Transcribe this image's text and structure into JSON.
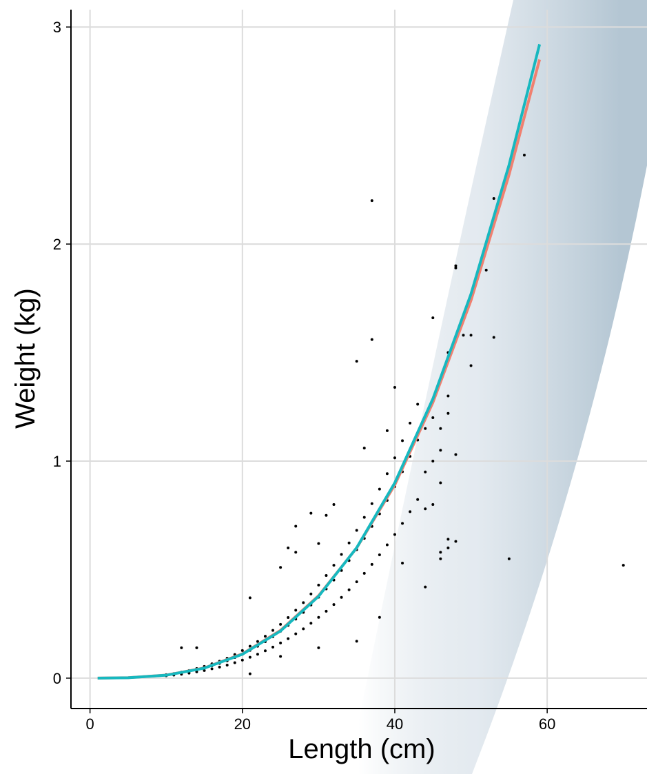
{
  "chart_data": {
    "type": "scatter",
    "xlabel": "Length (cm)",
    "ylabel": "Weight (kg)",
    "xlim": [
      -2.5,
      73.1
    ],
    "ylim": [
      -0.14,
      3.08
    ],
    "xticks": [
      0,
      20,
      40,
      60
    ],
    "yticks": [
      0,
      1,
      2,
      3
    ],
    "grid": true,
    "series": [
      {
        "type": "scatter",
        "color": "#000000",
        "x": [
          37,
          37,
          35,
          40,
          57,
          53,
          48,
          48,
          52,
          45,
          53,
          49,
          50,
          50,
          55,
          70,
          48,
          47,
          46,
          44,
          21,
          29,
          32,
          31,
          27,
          30,
          21,
          12,
          14,
          36,
          39,
          46,
          47,
          48,
          35,
          38,
          30,
          25,
          26,
          27,
          25,
          41,
          10,
          10,
          10,
          11,
          11,
          11,
          12,
          12,
          12,
          13,
          13,
          13,
          14,
          14,
          14,
          15,
          15,
          15,
          16,
          16,
          16,
          17,
          17,
          17,
          18,
          18,
          18,
          19,
          19,
          19,
          20,
          20,
          20,
          21,
          21,
          21,
          22,
          22,
          22,
          23,
          23,
          23,
          24,
          24,
          24,
          25,
          25,
          25,
          26,
          26,
          26,
          27,
          27,
          27,
          28,
          28,
          28,
          29,
          29,
          29,
          30,
          30,
          30,
          31,
          31,
          31,
          32,
          32,
          32,
          33,
          33,
          33,
          34,
          34,
          34,
          35,
          35,
          35,
          36,
          36,
          36,
          37,
          37,
          37,
          38,
          38,
          38,
          39,
          39,
          39,
          40,
          40,
          40,
          41,
          41,
          41,
          42,
          42,
          42,
          43,
          43,
          43,
          44,
          44,
          44,
          45,
          45,
          45,
          46,
          46,
          46,
          47,
          47,
          47
        ],
        "values": [
          2.2,
          1.56,
          1.46,
          1.34,
          2.41,
          2.21,
          1.9,
          1.89,
          1.88,
          1.66,
          1.57,
          1.58,
          1.58,
          1.44,
          0.55,
          0.52,
          0.63,
          0.64,
          0.58,
          0.42,
          0.37,
          0.76,
          0.8,
          0.75,
          0.7,
          0.14,
          0.02,
          0.14,
          0.14,
          1.06,
          1.14,
          0.55,
          0.6,
          1.03,
          0.17,
          0.28,
          0.62,
          0.51,
          0.6,
          0.58,
          0.1,
          0.53,
          0.011,
          0.014,
          0.016,
          0.014,
          0.018,
          0.021,
          0.018,
          0.024,
          0.028,
          0.023,
          0.03,
          0.035,
          0.029,
          0.038,
          0.044,
          0.035,
          0.047,
          0.054,
          0.043,
          0.057,
          0.066,
          0.051,
          0.068,
          0.078,
          0.06,
          0.08,
          0.092,
          0.071,
          0.095,
          0.109,
          0.083,
          0.11,
          0.127,
          0.096,
          0.128,
          0.147,
          0.11,
          0.147,
          0.169,
          0.126,
          0.168,
          0.193,
          0.143,
          0.191,
          0.22,
          0.162,
          0.216,
          0.248,
          0.182,
          0.243,
          0.279,
          0.204,
          0.272,
          0.313,
          0.227,
          0.303,
          0.348,
          0.253,
          0.337,
          0.388,
          0.28,
          0.373,
          0.429,
          0.308,
          0.411,
          0.473,
          0.339,
          0.452,
          0.52,
          0.372,
          0.496,
          0.57,
          0.407,
          0.542,
          0.623,
          0.444,
          0.592,
          0.681,
          0.483,
          0.644,
          0.741,
          0.524,
          0.699,
          0.804,
          0.568,
          0.757,
          0.871,
          0.614,
          0.819,
          0.942,
          0.662,
          0.883,
          1.015,
          0.713,
          0.951,
          1.094,
          0.767,
          1.022,
          1.175,
          0.823,
          1.097,
          1.262,
          0.78,
          0.95,
          1.15,
          0.8,
          1.0,
          1.2,
          0.9,
          1.05,
          1.15,
          1.22,
          1.3,
          1.5
        ]
      },
      {
        "type": "line",
        "color": "#f08070",
        "x": [
          1,
          5,
          10,
          15,
          20,
          25,
          30,
          35,
          40,
          45,
          50,
          55,
          59
        ],
        "values": [
          0,
          0.002,
          0.014,
          0.047,
          0.112,
          0.22,
          0.38,
          0.6,
          0.89,
          1.27,
          1.74,
          2.32,
          2.85
        ]
      },
      {
        "type": "line",
        "color": "#17b8bf",
        "x": [
          1,
          5,
          10,
          15,
          20,
          25,
          30,
          35,
          40,
          45,
          50,
          55,
          59
        ],
        "values": [
          0,
          0.00165,
          0.0135,
          0.046,
          0.11,
          0.217,
          0.377,
          0.601,
          0.9,
          1.287,
          1.77,
          2.365,
          2.92
        ]
      }
    ]
  }
}
